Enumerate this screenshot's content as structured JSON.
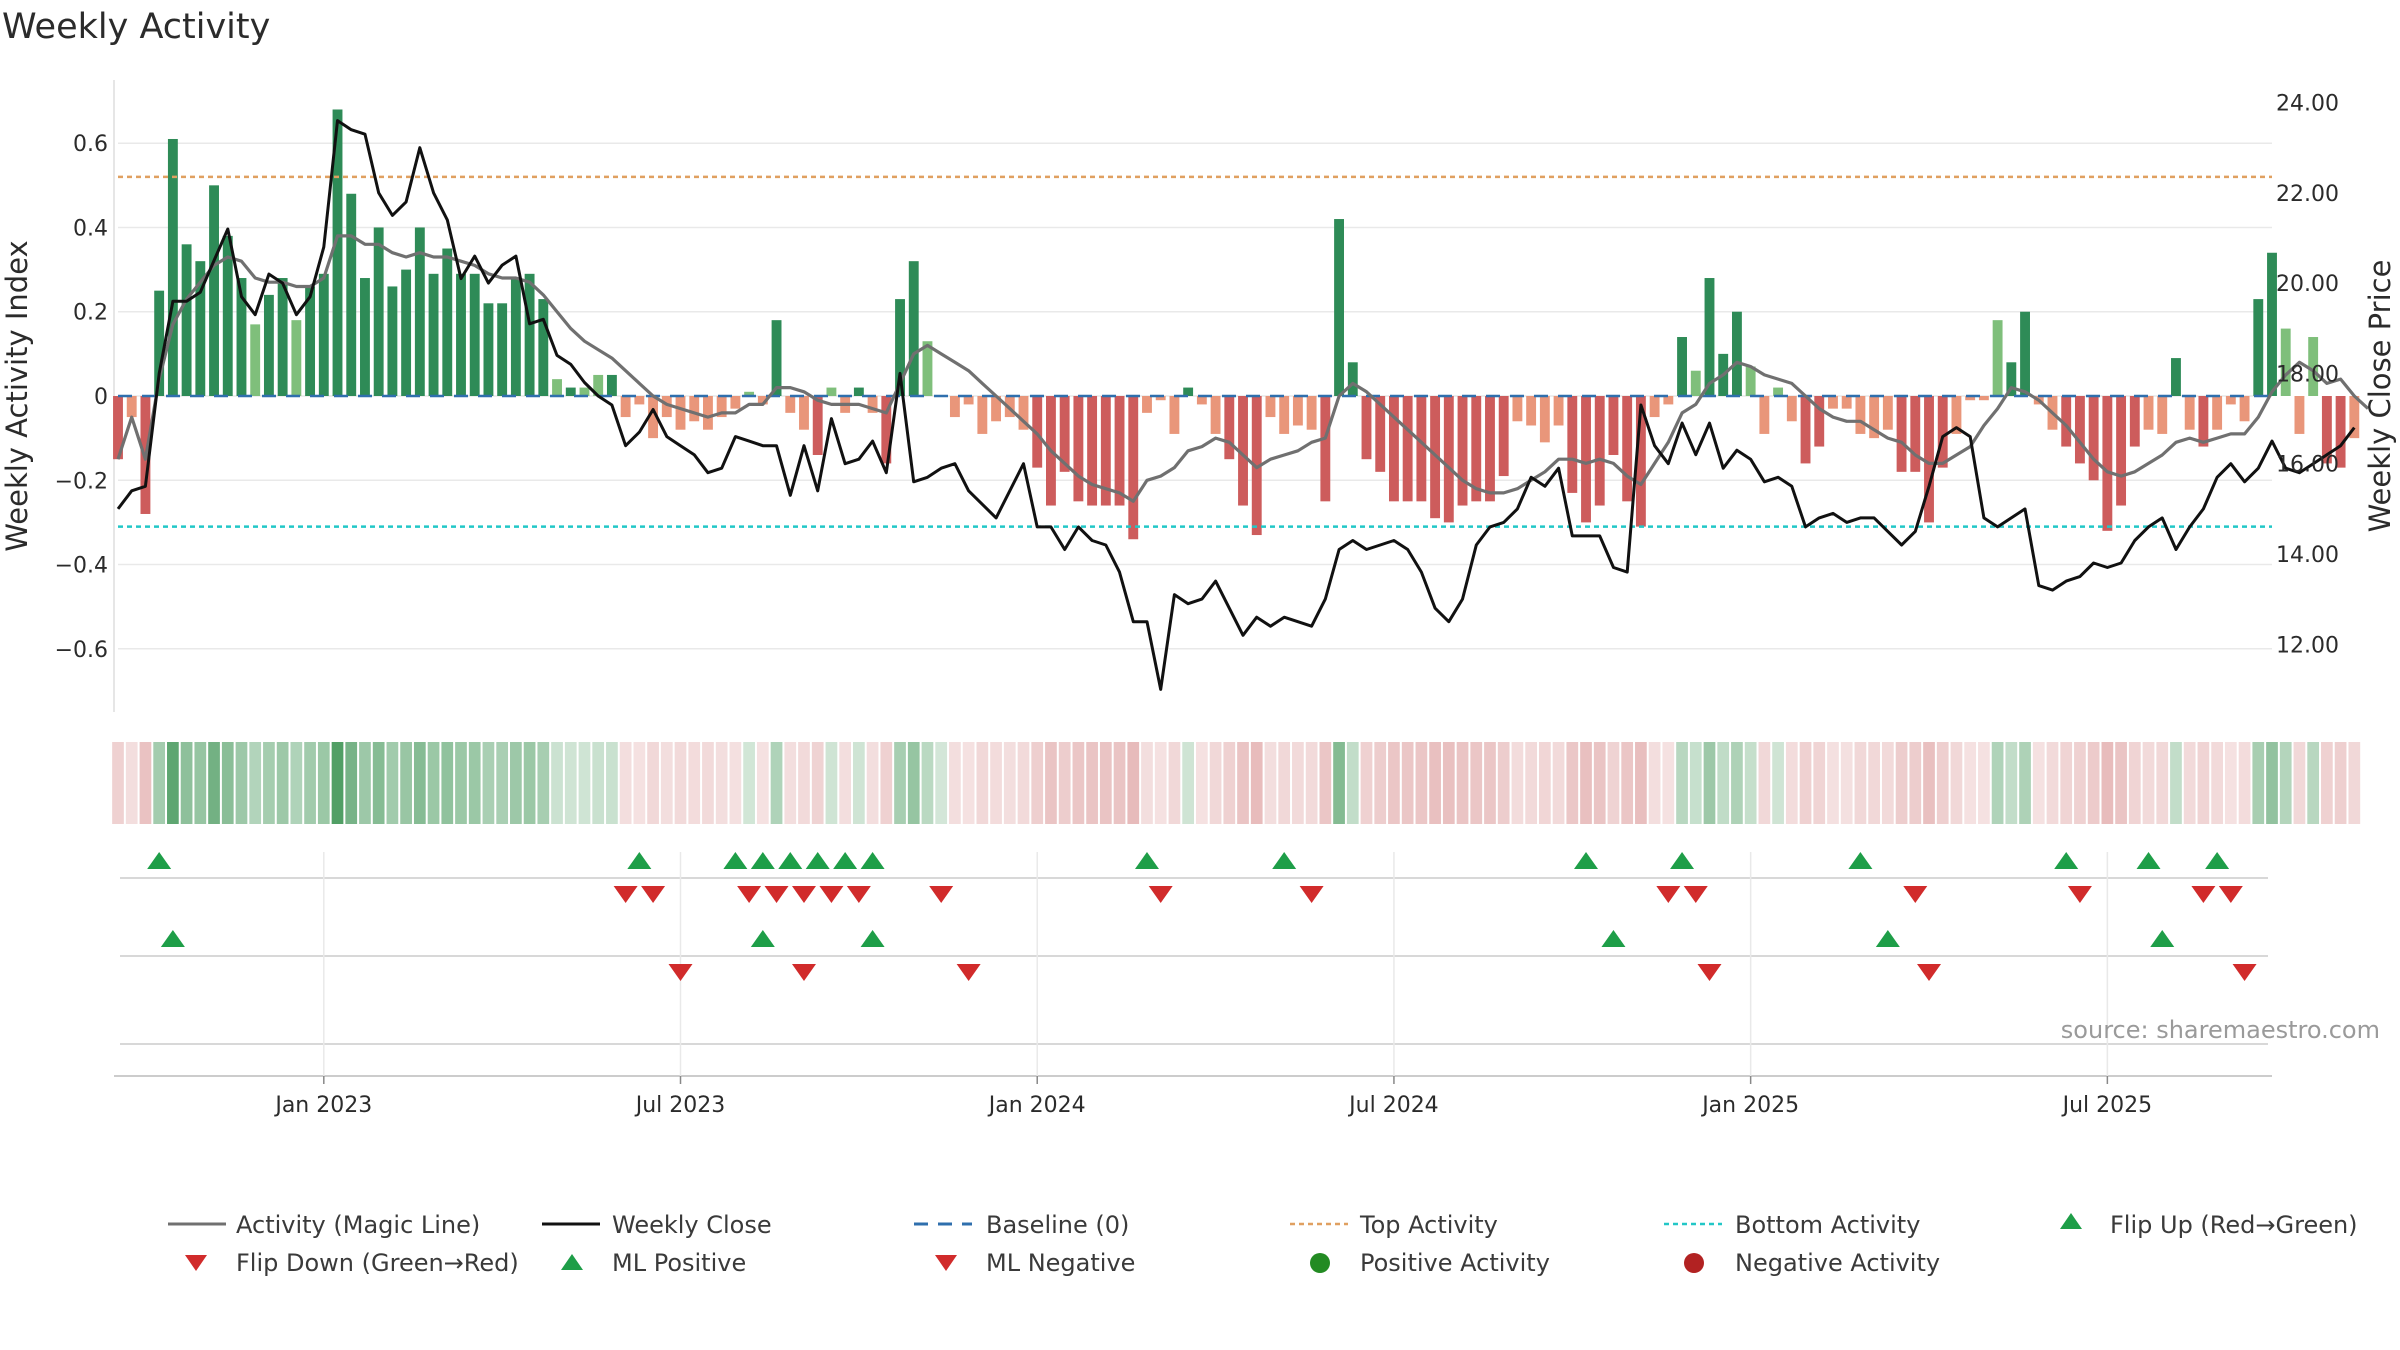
{
  "chart_data": {
    "type": "bar",
    "title": "Weekly Activity",
    "ylabel_left": "Weekly Activity Index",
    "ylabel_right": "Weekly Close Price",
    "source": "source: sharemaestro.com",
    "ylim_left": [
      -0.75,
      0.75
    ],
    "ylim_right": [
      10.5,
      24.5
    ],
    "yticks_left": [
      0.6,
      0.4,
      0.2,
      0,
      -0.2,
      -0.4,
      -0.6
    ],
    "yticks_left_labels": [
      "0.6",
      "0.4",
      "0.2",
      "0",
      "−0.2",
      "−0.4",
      "−0.6"
    ],
    "yticks_right": [
      24,
      22,
      20,
      18,
      16,
      14,
      12
    ],
    "yticks_right_labels": [
      "24.00",
      "22.00",
      "20.00",
      "18.00",
      "16.00",
      "14.00",
      "12.00"
    ],
    "x_ticks": [
      "Jan 2023",
      "Jul 2023",
      "Jan 2024",
      "Jul 2024",
      "Jan 2025",
      "Jul 2025"
    ],
    "x_range_weeks": [
      0,
      157
    ],
    "x_tick_weeks": [
      15,
      41,
      67,
      93,
      119,
      145
    ],
    "thresholds": {
      "top_activity": 0.52,
      "bottom_activity": -0.31,
      "baseline": 0
    },
    "activity_index": [
      -0.15,
      -0.05,
      -0.28,
      0.25,
      0.61,
      0.36,
      0.32,
      0.5,
      0.38,
      0.28,
      0.17,
      0.24,
      0.28,
      0.18,
      0.26,
      0.29,
      0.68,
      0.48,
      0.28,
      0.4,
      0.26,
      0.3,
      0.4,
      0.29,
      0.35,
      0.29,
      0.29,
      0.22,
      0.22,
      0.28,
      0.29,
      0.23,
      0.04,
      0.02,
      0.02,
      0.05,
      0.05,
      -0.05,
      -0.02,
      -0.1,
      -0.05,
      -0.08,
      -0.06,
      -0.08,
      -0.05,
      -0.03,
      0.01,
      -0.02,
      0.18,
      -0.04,
      -0.08,
      -0.14,
      0.02,
      -0.04,
      0.02,
      -0.04,
      -0.16,
      0.23,
      0.32,
      0.13,
      0.0,
      -0.05,
      -0.02,
      -0.09,
      -0.06,
      -0.05,
      -0.08,
      -0.17,
      -0.26,
      -0.18,
      -0.25,
      -0.26,
      -0.26,
      -0.26,
      -0.34,
      -0.04,
      -0.01,
      -0.09,
      0.02,
      -0.02,
      -0.09,
      -0.15,
      -0.26,
      -0.33,
      -0.05,
      -0.09,
      -0.07,
      -0.08,
      -0.25,
      0.42,
      0.08,
      -0.15,
      -0.18,
      -0.25,
      -0.25,
      -0.25,
      -0.29,
      -0.3,
      -0.26,
      -0.25,
      -0.25,
      -0.19,
      -0.06,
      -0.07,
      -0.11,
      -0.07,
      -0.23,
      -0.3,
      -0.26,
      -0.14,
      -0.25,
      -0.31,
      -0.05,
      -0.02,
      0.14,
      0.06,
      0.28,
      0.1,
      0.2,
      0.07,
      -0.09,
      0.02,
      -0.06,
      -0.16,
      -0.12,
      -0.03,
      -0.03,
      -0.09,
      -0.1,
      -0.08,
      -0.18,
      -0.18,
      -0.3,
      -0.17,
      -0.09,
      -0.01,
      -0.01,
      0.18,
      0.08,
      0.2,
      -0.02,
      -0.08,
      -0.12,
      -0.16,
      -0.2,
      -0.32,
      -0.26,
      -0.12,
      -0.08,
      -0.09,
      0.09,
      -0.08,
      -0.12,
      -0.08,
      -0.02,
      -0.06,
      0.23,
      0.34,
      0.16,
      -0.09,
      0.14,
      -0.16,
      -0.17,
      -0.1
    ],
    "magic_line": [
      -0.15,
      -0.05,
      -0.15,
      0.04,
      0.17,
      0.23,
      0.27,
      0.31,
      0.33,
      0.32,
      0.28,
      0.27,
      0.27,
      0.26,
      0.26,
      0.28,
      0.38,
      0.38,
      0.36,
      0.36,
      0.34,
      0.33,
      0.34,
      0.33,
      0.33,
      0.32,
      0.31,
      0.29,
      0.28,
      0.28,
      0.27,
      0.24,
      0.2,
      0.16,
      0.13,
      0.11,
      0.09,
      0.06,
      0.03,
      0.0,
      -0.02,
      -0.03,
      -0.04,
      -0.05,
      -0.04,
      -0.04,
      -0.02,
      -0.02,
      0.02,
      0.02,
      0.01,
      -0.01,
      -0.02,
      -0.02,
      -0.02,
      -0.03,
      -0.04,
      0.03,
      0.1,
      0.12,
      0.1,
      0.08,
      0.06,
      0.03,
      0.0,
      -0.03,
      -0.06,
      -0.09,
      -0.13,
      -0.16,
      -0.19,
      -0.21,
      -0.22,
      -0.23,
      -0.25,
      -0.2,
      -0.19,
      -0.17,
      -0.13,
      -0.12,
      -0.1,
      -0.11,
      -0.14,
      -0.17,
      -0.15,
      -0.14,
      -0.13,
      -0.11,
      -0.1,
      0.0,
      0.03,
      0.01,
      -0.02,
      -0.05,
      -0.08,
      -0.11,
      -0.14,
      -0.17,
      -0.2,
      -0.22,
      -0.23,
      -0.23,
      -0.22,
      -0.2,
      -0.18,
      -0.15,
      -0.15,
      -0.16,
      -0.15,
      -0.16,
      -0.19,
      -0.21,
      -0.16,
      -0.11,
      -0.04,
      -0.02,
      0.03,
      0.05,
      0.08,
      0.07,
      0.05,
      0.04,
      0.03,
      0.0,
      -0.03,
      -0.05,
      -0.06,
      -0.06,
      -0.08,
      -0.1,
      -0.11,
      -0.14,
      -0.16,
      -0.16,
      -0.14,
      -0.12,
      -0.07,
      -0.03,
      0.02,
      0.01,
      -0.01,
      -0.04,
      -0.07,
      -0.11,
      -0.15,
      -0.18,
      -0.19,
      -0.18,
      -0.16,
      -0.14,
      -0.11,
      -0.1,
      -0.11,
      -0.1,
      -0.09,
      -0.09,
      -0.05,
      0.01,
      0.05,
      0.08,
      0.06,
      0.03,
      0.04,
      0.0,
      -0.03
    ],
    "weekly_close": [
      15.0,
      15.4,
      15.5,
      18.0,
      19.6,
      19.6,
      19.8,
      20.5,
      21.2,
      19.7,
      19.3,
      20.2,
      20.0,
      19.3,
      19.7,
      20.8,
      23.6,
      23.4,
      23.3,
      22.0,
      21.5,
      21.8,
      23.0,
      22.0,
      21.4,
      20.1,
      20.6,
      20.0,
      20.4,
      20.6,
      19.1,
      19.2,
      18.4,
      18.2,
      17.8,
      17.5,
      17.3,
      16.4,
      16.7,
      17.2,
      16.6,
      16.4,
      16.2,
      15.8,
      15.9,
      16.6,
      16.5,
      16.4,
      16.4,
      15.3,
      16.4,
      15.4,
      17.0,
      16.0,
      16.1,
      16.5,
      15.8,
      18.0,
      15.6,
      15.7,
      15.9,
      16.0,
      15.4,
      15.1,
      14.8,
      15.4,
      16.0,
      14.6,
      14.6,
      14.1,
      14.6,
      14.3,
      14.2,
      13.6,
      12.5,
      12.5,
      11.0,
      13.1,
      12.9,
      13.0,
      13.4,
      12.8,
      12.2,
      12.6,
      12.4,
      12.6,
      12.5,
      12.4,
      13.0,
      14.1,
      14.3,
      14.1,
      14.2,
      14.3,
      14.1,
      13.6,
      12.8,
      12.5,
      13.0,
      14.2,
      14.6,
      14.7,
      15.0,
      15.7,
      15.5,
      15.9,
      14.4,
      14.4,
      14.4,
      13.7,
      13.6,
      17.3,
      16.4,
      16.0,
      16.9,
      16.2,
      16.9,
      15.9,
      16.3,
      16.1,
      15.6,
      15.7,
      15.5,
      14.6,
      14.8,
      14.9,
      14.7,
      14.8,
      14.8,
      14.5,
      14.2,
      14.5,
      15.5,
      16.6,
      16.8,
      16.6,
      14.8,
      14.6,
      14.8,
      15.0,
      13.3,
      13.2,
      13.4,
      13.5,
      13.8,
      13.7,
      13.8,
      14.3,
      14.6,
      14.8,
      14.1,
      14.6,
      15.0,
      15.7,
      16.0,
      15.6,
      15.9,
      16.5,
      15.9,
      15.8,
      16.0,
      16.2,
      16.4,
      16.8
    ],
    "flip_up_weeks": [
      3,
      38,
      45,
      47,
      49,
      51,
      53,
      55,
      75,
      85,
      107,
      114,
      127,
      142,
      148,
      153
    ],
    "flip_down_weeks": [
      37,
      39,
      46,
      48,
      50,
      52,
      54,
      60,
      76,
      87,
      113,
      115,
      131,
      143,
      152,
      154
    ],
    "ml_positive_weeks": [
      4,
      47,
      55,
      109,
      129,
      149
    ],
    "ml_negative_weeks": [
      41,
      50,
      62,
      116,
      132,
      155
    ],
    "legend": [
      "Activity (Magic Line)",
      "Weekly Close",
      "Baseline (0)",
      "Top Activity",
      "Bottom Activity",
      "Flip Up (Red→Green)",
      "Flip Down (Green→Red)",
      "ML Positive",
      "ML Negative",
      "Positive Activity",
      "Negative Activity"
    ]
  },
  "colors": {
    "pos_dark": "#2e8b57",
    "pos_light": "#7fbf7b",
    "neg_dark": "#cd5c5c",
    "neg_light": "#e9967a",
    "magic_line": "#707070",
    "close_line": "#111111",
    "baseline": "#2f6fad",
    "top": "#e0a060",
    "bottom": "#22c7c7",
    "marker_up": "#1e9e48",
    "marker_down": "#d12b2b",
    "pos_dot": "#238b23",
    "neg_dot": "#b22222",
    "grid": "#e9e9e9",
    "axis": "#cccccc"
  }
}
